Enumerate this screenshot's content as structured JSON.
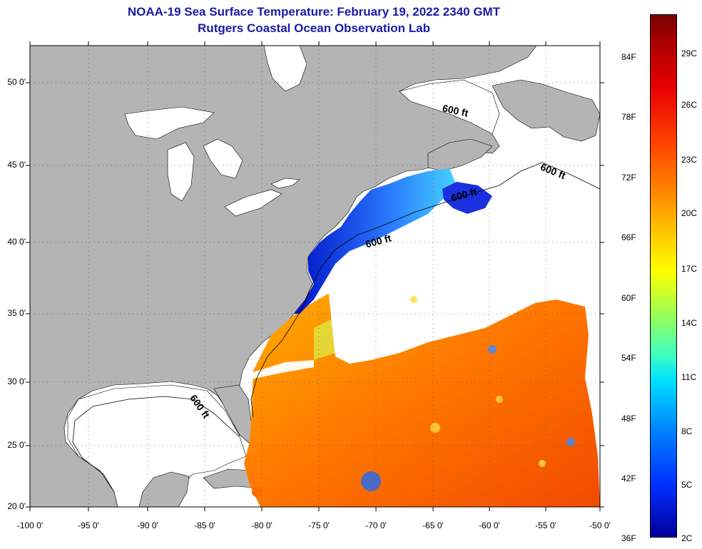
{
  "title": {
    "line1": "NOAA-19 Sea Surface Temperature:  February 19, 2022 2340 GMT",
    "line2": "Rutgers Coastal Ocean Observation Lab"
  },
  "map": {
    "lon_labels": [
      "-100 0'",
      "-95 0'",
      "-90 0'",
      "-85 0'",
      "-80 0'",
      "-75 0'",
      "-70 0'",
      "-65 0'",
      "-60 0'",
      "-55 0'",
      "-50 0'"
    ],
    "lat_labels": [
      "20 0'",
      "25 0'",
      "30 0'",
      "35 0'",
      "40 0'",
      "45 0'",
      "50 0'"
    ],
    "isobath_labels": [
      "600 ft",
      "600 ft",
      "600 ft",
      "600 ft",
      "600 ft"
    ],
    "colors": {
      "land": "#b4b4b4",
      "cloud": "#ffffff",
      "frame": "#000000"
    }
  },
  "colorbar": {
    "fahrenheit_labels": [
      "84F",
      "78F",
      "72F",
      "66F",
      "60F",
      "54F",
      "48F",
      "42F",
      "36F"
    ],
    "celsius_labels": [
      "29C",
      "26C",
      "23C",
      "20C",
      "17C",
      "14C",
      "11C",
      "8C",
      "5C",
      "2C"
    ]
  }
}
